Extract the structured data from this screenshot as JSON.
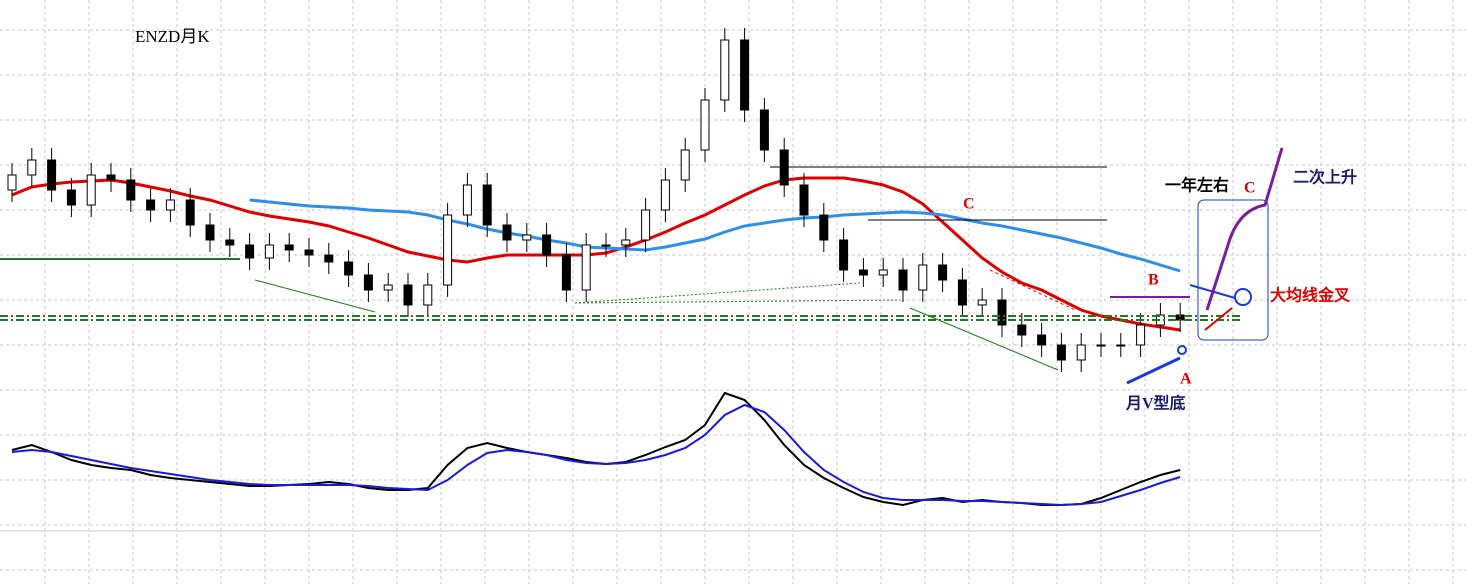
{
  "chart_data": [
    {
      "type": "candlestick",
      "title": "ENZD月K",
      "ylim": [
        1.5,
        2.5
      ],
      "grid": true,
      "up_color": "#ffffff",
      "down_color": "#000000",
      "open": [
        2.025,
        2.0625,
        2.1,
        2.025,
        1.9875,
        2.0625,
        2.05,
        2.0,
        1.975,
        2.0,
        1.9375,
        1.9,
        1.8875,
        1.855,
        1.8875,
        1.875,
        1.8625,
        1.845,
        1.8125,
        1.775,
        1.7875,
        1.7375,
        1.7875,
        1.9625,
        2.0375,
        1.9375,
        1.9,
        1.9125,
        1.8625,
        1.775,
        1.8875,
        1.8875,
        1.9,
        1.975,
        2.05,
        2.125,
        2.25,
        2.4,
        2.225,
        2.125,
        2.0375,
        1.9625,
        1.9,
        1.825,
        1.8125,
        1.825,
        1.775,
        1.8375,
        1.8,
        1.7375,
        1.75,
        1.6875,
        1.6625,
        1.6375,
        1.6,
        1.6375,
        1.6375,
        1.6375,
        1.6875,
        1.7125
      ],
      "high": [
        2.0925,
        2.13,
        2.13,
        2.055,
        2.0925,
        2.0925,
        2.08,
        2.03,
        2.03,
        2.03,
        1.9675,
        1.93,
        1.9175,
        1.9175,
        1.9175,
        1.905,
        1.8925,
        1.875,
        1.8425,
        1.8175,
        1.8175,
        1.8175,
        1.9925,
        2.0675,
        2.0675,
        1.9675,
        1.9425,
        1.9425,
        1.8925,
        1.9175,
        1.9175,
        1.93,
        2.005,
        2.08,
        2.155,
        2.28,
        2.43,
        2.43,
        2.255,
        2.155,
        2.0675,
        1.9925,
        1.93,
        1.855,
        1.855,
        1.855,
        1.8675,
        1.8675,
        1.83,
        1.78,
        1.78,
        1.7175,
        1.6925,
        1.6675,
        1.6675,
        1.6675,
        1.6675,
        1.7175,
        1.7425,
        1.7425
      ],
      "low": [
        1.995,
        2.0325,
        1.995,
        1.9575,
        1.9575,
        2.02,
        1.97,
        1.945,
        1.945,
        1.9075,
        1.87,
        1.8575,
        1.825,
        1.825,
        1.845,
        1.8325,
        1.815,
        1.7825,
        1.745,
        1.745,
        1.7075,
        1.7075,
        1.7575,
        1.9325,
        1.9075,
        1.87,
        1.87,
        1.8325,
        1.745,
        1.745,
        1.8575,
        1.8575,
        1.87,
        1.945,
        2.02,
        2.095,
        2.22,
        2.195,
        2.095,
        2.0075,
        1.9325,
        1.87,
        1.795,
        1.7825,
        1.7825,
        1.745,
        1.745,
        1.77,
        1.7075,
        1.7075,
        1.6575,
        1.6325,
        1.6075,
        1.57,
        1.57,
        1.6075,
        1.6075,
        1.6075,
        1.6575,
        1.67
      ],
      "close": [
        2.0625,
        2.1,
        2.025,
        1.9875,
        2.0625,
        2.05,
        2.0,
        1.975,
        2.0,
        1.9375,
        1.9,
        1.8875,
        1.855,
        1.8875,
        1.875,
        1.8625,
        1.845,
        1.8125,
        1.775,
        1.7875,
        1.7375,
        1.7875,
        1.9625,
        2.0375,
        1.9375,
        1.9,
        1.9125,
        1.8625,
        1.775,
        1.8875,
        1.8875,
        1.9,
        1.975,
        2.05,
        2.125,
        2.25,
        2.4,
        2.225,
        2.125,
        2.0375,
        1.9625,
        1.9,
        1.825,
        1.8125,
        1.825,
        1.775,
        1.8375,
        1.8,
        1.7375,
        1.75,
        1.6875,
        1.6625,
        1.6375,
        1.6,
        1.6375,
        1.6375,
        1.6375,
        1.6875,
        1.7125,
        1.7
      ],
      "series": [
        {
          "color": "#e00000",
          "values": [
            2.0125,
            2.0325,
            2.04,
            2.045,
            2.0475,
            2.05,
            2.0425,
            2.0325,
            2.0225,
            2.01,
            2.0,
            1.985,
            1.97,
            1.96,
            1.9525,
            1.945,
            1.935,
            1.92,
            1.905,
            1.8875,
            1.87,
            1.86,
            1.85,
            1.845,
            1.855,
            1.8625,
            1.8625,
            1.8625,
            1.8625,
            1.8625,
            1.8675,
            1.8825,
            1.9,
            1.92,
            1.9425,
            1.9625,
            1.9875,
            2.0125,
            2.035,
            2.05,
            2.055,
            2.055,
            2.055,
            2.0475,
            2.0375,
            2.02,
            1.99,
            1.945,
            1.9,
            1.855,
            1.82,
            1.7925,
            1.775,
            1.75,
            1.725,
            1.71,
            1.7,
            1.69,
            1.6825,
            1.675
          ]
        },
        {
          "color": "#2e8fe8",
          "values": [
            null,
            null,
            null,
            null,
            null,
            null,
            null,
            null,
            null,
            null,
            null,
            null,
            2.0,
            1.995,
            1.99,
            1.985,
            1.9825,
            1.98,
            1.975,
            1.9725,
            1.97,
            1.9625,
            1.95,
            1.94,
            1.9275,
            1.9175,
            1.91,
            1.9,
            1.8925,
            1.8825,
            1.88,
            1.8775,
            1.875,
            1.8825,
            1.8925,
            1.9025,
            1.92,
            1.935,
            1.9425,
            1.95,
            1.955,
            1.9575,
            1.9625,
            1.965,
            1.9675,
            1.97,
            1.9675,
            1.9625,
            1.9525,
            1.9425,
            1.935,
            1.925,
            1.915,
            1.905,
            1.8925,
            1.88,
            1.865,
            1.8525,
            1.8375,
            1.8225
          ]
        }
      ]
    },
    {
      "type": "line",
      "ylim": [
        -1,
        1.5
      ],
      "series": [
        {
          "color": "#000000",
          "values": [
            0.2,
            0.3,
            0.16,
            0,
            -0.1,
            -0.16,
            -0.2,
            -0.3,
            -0.36,
            -0.4,
            -0.44,
            -0.48,
            -0.52,
            -0.52,
            -0.5,
            -0.48,
            -0.44,
            -0.48,
            -0.56,
            -0.6,
            -0.6,
            -0.56,
            -0.1,
            0.24,
            0.34,
            0.24,
            0.16,
            0.1,
            0.04,
            -0.04,
            -0.08,
            -0.04,
            0.1,
            0.26,
            0.4,
            0.7,
            1.34,
            1.2,
            0.8,
            0.3,
            -0.1,
            -0.36,
            -0.56,
            -0.74,
            -0.84,
            -0.9,
            -0.8,
            -0.76,
            -0.84,
            -0.8,
            -0.84,
            -0.86,
            -0.9,
            -0.9,
            -0.88,
            -0.76,
            -0.6,
            -0.44,
            -0.3,
            -0.2
          ]
        },
        {
          "color": "#1a1adc",
          "values": [
            0.16,
            0.2,
            0.16,
            0.08,
            0,
            -0.08,
            -0.16,
            -0.22,
            -0.28,
            -0.34,
            -0.4,
            -0.44,
            -0.48,
            -0.5,
            -0.5,
            -0.5,
            -0.5,
            -0.5,
            -0.52,
            -0.56,
            -0.58,
            -0.6,
            -0.4,
            -0.1,
            0.14,
            0.2,
            0.16,
            0.1,
            0,
            -0.06,
            -0.08,
            -0.06,
            0,
            0.1,
            0.24,
            0.5,
            0.9,
            1.1,
            0.96,
            0.6,
            0.16,
            -0.2,
            -0.44,
            -0.64,
            -0.76,
            -0.8,
            -0.8,
            -0.8,
            -0.82,
            -0.82,
            -0.84,
            -0.86,
            -0.88,
            -0.9,
            -0.88,
            -0.84,
            -0.72,
            -0.6,
            -0.46,
            -0.34
          ]
        }
      ]
    }
  ],
  "annotations": [
    "C",
    "一年左右",
    "C",
    "二次上升",
    "B",
    "大均线金叉",
    "A",
    "月V型底"
  ]
}
